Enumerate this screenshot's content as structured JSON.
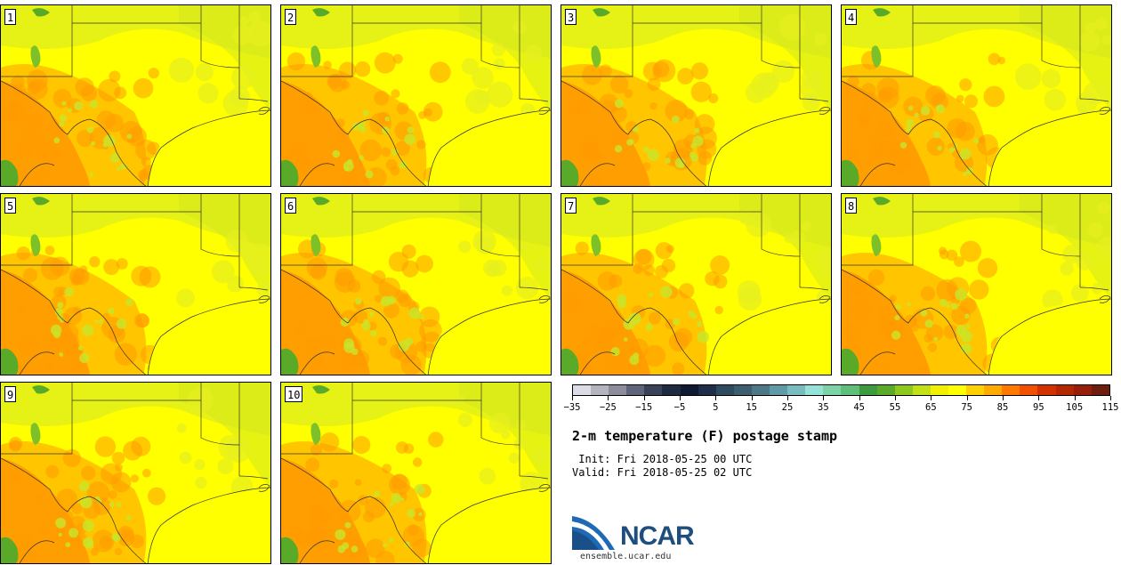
{
  "stamps": [
    {
      "label": "1"
    },
    {
      "label": "2"
    },
    {
      "label": "3"
    },
    {
      "label": "4"
    },
    {
      "label": "5"
    },
    {
      "label": "6"
    },
    {
      "label": "7"
    },
    {
      "label": "8"
    },
    {
      "label": "9"
    },
    {
      "label": "10"
    }
  ],
  "colorbar": {
    "colors": [
      "#dcdce6",
      "#b4b4be",
      "#8c8c9a",
      "#5f6478",
      "#3a4258",
      "#1e2a40",
      "#0f1a32",
      "#1e2e48",
      "#2e4a5e",
      "#3c5e70",
      "#4d7888",
      "#5f9aa6",
      "#78bcc0",
      "#96e2d8",
      "#7ed2a8",
      "#5ebe7a",
      "#3e9a3e",
      "#5aaa2a",
      "#8cc81e",
      "#c2e016",
      "#f0f000",
      "#ffff00",
      "#ffd000",
      "#ffaa00",
      "#ff7800",
      "#f05000",
      "#d23200",
      "#b42800",
      "#961e0a",
      "#6e1e0e"
    ],
    "tick_labels": [
      "−35",
      "−25",
      "−15",
      "−5",
      "5",
      "15",
      "25",
      "35",
      "45",
      "55",
      "65",
      "75",
      "85",
      "95",
      "105",
      "115"
    ],
    "min": -35,
    "max": 120,
    "step": 5
  },
  "title": "2-m temperature (F) postage stamp",
  "init": " Init: Fri 2018-05-25 00 UTC",
  "valid": "Valid: Fri 2018-05-25 02 UTC",
  "logo_text": "NCAR",
  "site": "ensemble.ucar.edu"
}
